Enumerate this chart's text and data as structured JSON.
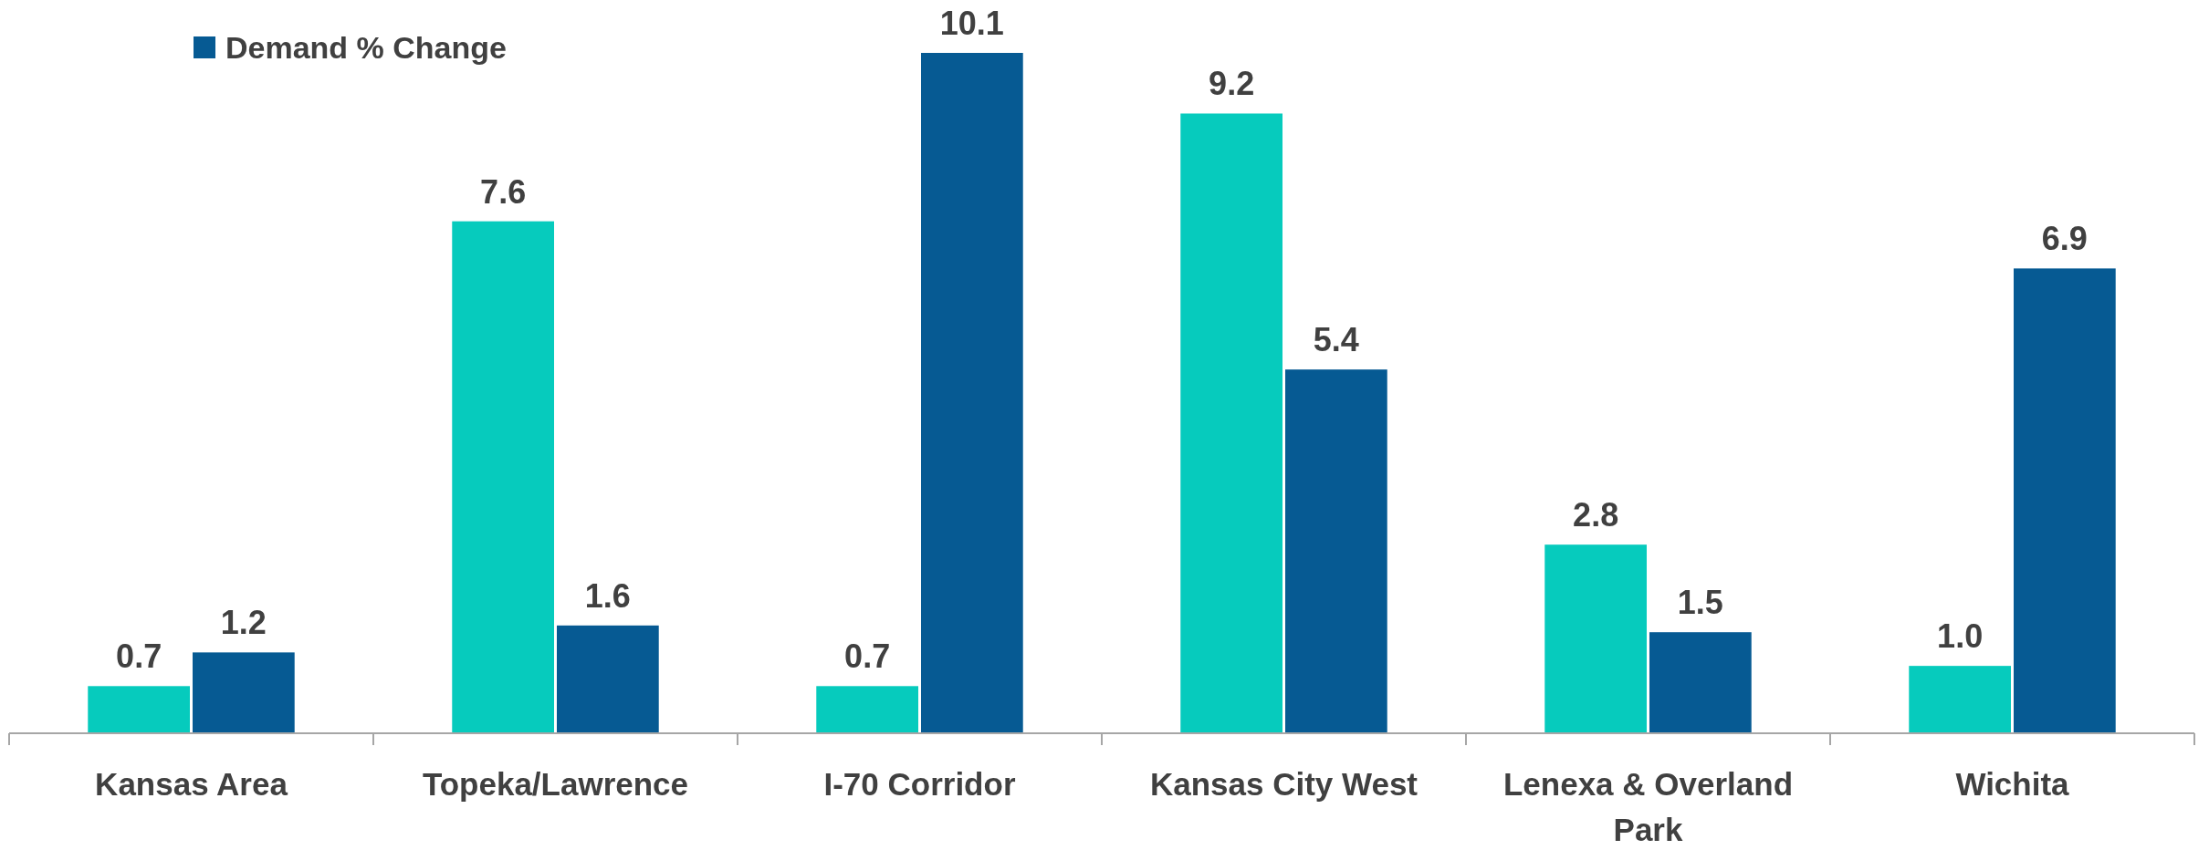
{
  "chart_data": {
    "type": "bar",
    "categories": [
      "Kansas Area",
      "Topeka/Lawrence",
      "I-70 Corridor",
      "Kansas City West",
      "Lenexa & Overland Park",
      "Wichita"
    ],
    "series": [
      {
        "color": "#06cbbd",
        "values": [
          0.7,
          7.6,
          0.7,
          9.2,
          2.8,
          1.0
        ],
        "value_labels": [
          "0.7",
          "7.6",
          "0.7",
          "9.2",
          "2.8",
          "1.0"
        ]
      },
      {
        "name": "Demand % Change",
        "color": "#065a93",
        "values": [
          1.2,
          1.6,
          10.1,
          5.4,
          1.5,
          6.9
        ],
        "value_labels": [
          "1.2",
          "1.6",
          "10.1",
          "5.4",
          "1.5",
          "6.9"
        ]
      }
    ],
    "legend": "top left"
  }
}
